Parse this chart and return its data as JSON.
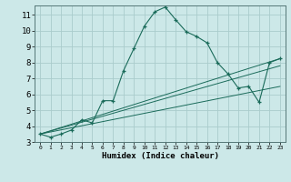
{
  "title": "",
  "xlabel": "Humidex (Indice chaleur)",
  "bg_color": "#cce8e8",
  "grid_color": "#aacccc",
  "line_color": "#1a6b5a",
  "xlim": [
    -0.5,
    23.5
  ],
  "ylim": [
    3.0,
    11.6
  ],
  "xticks": [
    0,
    1,
    2,
    3,
    4,
    5,
    6,
    7,
    8,
    9,
    10,
    11,
    12,
    13,
    14,
    15,
    16,
    17,
    18,
    19,
    20,
    21,
    22,
    23
  ],
  "yticks": [
    3,
    4,
    5,
    6,
    7,
    8,
    9,
    10,
    11
  ],
  "main_x": [
    0,
    1,
    2,
    3,
    4,
    5,
    6,
    7,
    8,
    9,
    10,
    11,
    12,
    13,
    14,
    15,
    16,
    17,
    18,
    19,
    20,
    21,
    22,
    23
  ],
  "main_y": [
    3.5,
    3.3,
    3.5,
    3.75,
    4.4,
    4.2,
    5.6,
    5.6,
    7.5,
    8.9,
    10.3,
    11.2,
    11.5,
    10.7,
    9.95,
    9.65,
    9.25,
    8.0,
    7.3,
    6.4,
    6.5,
    5.5,
    8.0,
    8.25
  ],
  "ref_lines": [
    {
      "x": [
        0,
        23
      ],
      "y": [
        3.5,
        8.25
      ]
    },
    {
      "x": [
        0,
        23
      ],
      "y": [
        3.5,
        7.8
      ]
    },
    {
      "x": [
        0,
        23
      ],
      "y": [
        3.5,
        6.5
      ]
    }
  ]
}
